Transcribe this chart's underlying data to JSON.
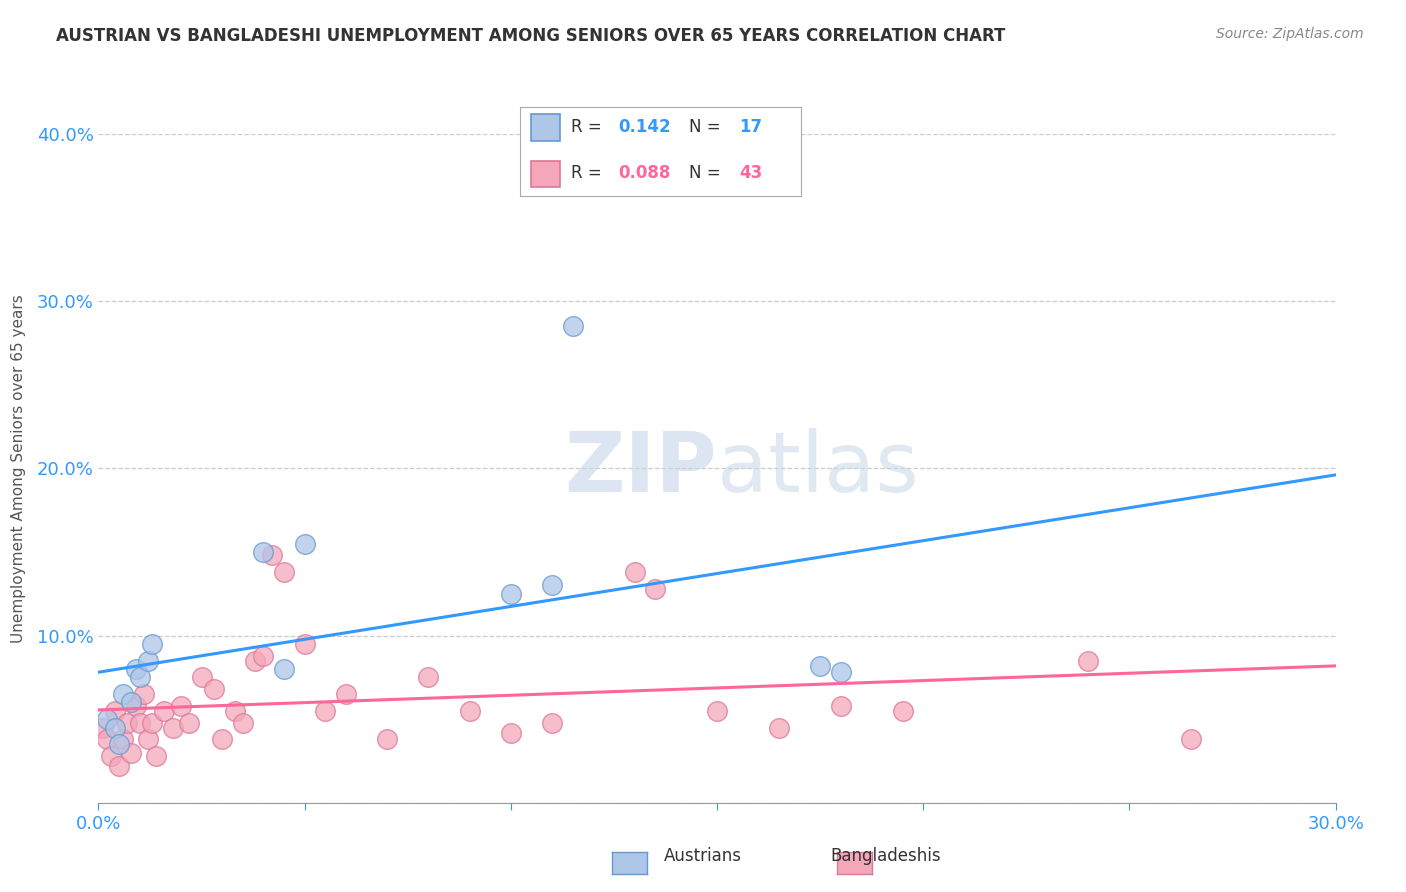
{
  "title": "AUSTRIAN VS BANGLADESHI UNEMPLOYMENT AMONG SENIORS OVER 65 YEARS CORRELATION CHART",
  "source": "Source: ZipAtlas.com",
  "ylabel": "Unemployment Among Seniors over 65 years",
  "xlim": [
    0.0,
    0.3
  ],
  "ylim": [
    0.0,
    0.4
  ],
  "xticks": [
    0.0,
    0.05,
    0.1,
    0.15,
    0.2,
    0.25,
    0.3
  ],
  "yticks": [
    0.0,
    0.1,
    0.2,
    0.3,
    0.4
  ],
  "R_austrians": 0.142,
  "N_austrians": 17,
  "R_bangladeshis": 0.088,
  "N_bangladeshis": 43,
  "austrians_fill": "#aec6e8",
  "australians_edge": "#6699cc",
  "bangladeshis_fill": "#f4a7b9",
  "bangladeshis_edge": "#dd7799",
  "austrians_line_color": "#3399ff",
  "bangladeshis_line_color": "#ff6699",
  "legend_label_austrians": "Austrians",
  "legend_label_bangladeshis": "Bangladeshis",
  "watermark_zip": "ZIP",
  "watermark_atlas": "atlas",
  "austrians_x": [
    0.002,
    0.004,
    0.005,
    0.006,
    0.008,
    0.009,
    0.01,
    0.012,
    0.013,
    0.04,
    0.045,
    0.05,
    0.1,
    0.11,
    0.115,
    0.175,
    0.18
  ],
  "austrians_y": [
    0.05,
    0.045,
    0.035,
    0.065,
    0.06,
    0.08,
    0.075,
    0.085,
    0.095,
    0.15,
    0.08,
    0.155,
    0.125,
    0.13,
    0.285,
    0.082,
    0.078
  ],
  "bangladeshis_x": [
    0.001,
    0.002,
    0.003,
    0.004,
    0.005,
    0.006,
    0.007,
    0.008,
    0.009,
    0.01,
    0.011,
    0.012,
    0.013,
    0.014,
    0.016,
    0.018,
    0.02,
    0.022,
    0.025,
    0.028,
    0.03,
    0.033,
    0.035,
    0.038,
    0.04,
    0.042,
    0.045,
    0.05,
    0.055,
    0.06,
    0.07,
    0.08,
    0.09,
    0.1,
    0.11,
    0.13,
    0.135,
    0.15,
    0.165,
    0.18,
    0.195,
    0.24,
    0.265
  ],
  "bangladeshis_y": [
    0.045,
    0.038,
    0.028,
    0.055,
    0.022,
    0.038,
    0.048,
    0.03,
    0.058,
    0.048,
    0.065,
    0.038,
    0.048,
    0.028,
    0.055,
    0.045,
    0.058,
    0.048,
    0.075,
    0.068,
    0.038,
    0.055,
    0.048,
    0.085,
    0.088,
    0.148,
    0.138,
    0.095,
    0.055,
    0.065,
    0.038,
    0.075,
    0.055,
    0.042,
    0.048,
    0.138,
    0.128,
    0.055,
    0.045,
    0.058,
    0.055,
    0.085,
    0.038
  ]
}
